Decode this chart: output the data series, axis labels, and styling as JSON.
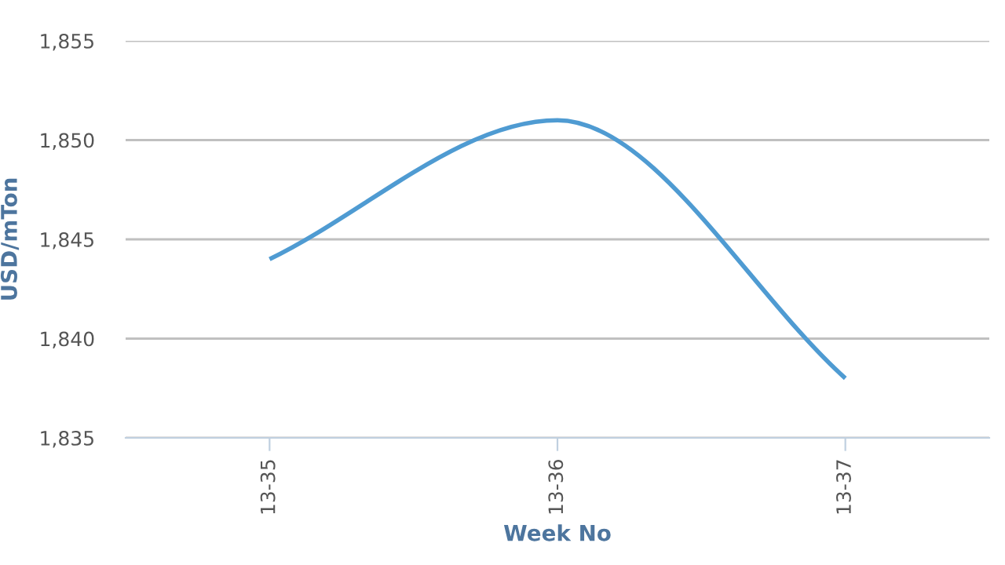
{
  "chart_data": {
    "type": "line",
    "xlabel": "Week No",
    "ylabel": "USD/mTon",
    "categories": [
      "13-35",
      "13-36",
      "13-37"
    ],
    "series": [
      {
        "color": "#4f9bd2",
        "values": [
          1844,
          1851,
          1838
        ]
      }
    ],
    "ylim": [
      1835,
      1855
    ],
    "yticks": [
      {
        "value": 1835,
        "label": "1,835"
      },
      {
        "value": 1840,
        "label": "1,840"
      },
      {
        "value": 1845,
        "label": "1,845"
      },
      {
        "value": 1850,
        "label": "1,850"
      },
      {
        "value": 1855,
        "label": "1,855"
      }
    ],
    "grid": "y",
    "marker": "none",
    "line_style": "solid"
  }
}
